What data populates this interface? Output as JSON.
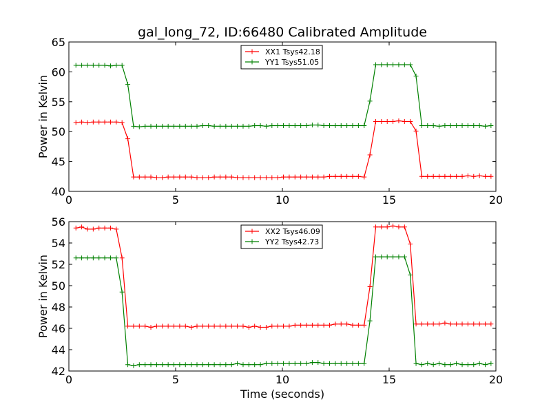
{
  "chart_data": [
    {
      "type": "line",
      "title": "gal_long_72, ID:66480 Calibrated Amplitude",
      "xlabel": "",
      "ylabel": "Power in Kelvin",
      "xlim": [
        0,
        20
      ],
      "ylim": [
        40,
        65
      ],
      "xticks": [
        0,
        5,
        10,
        15,
        20
      ],
      "yticks": [
        40,
        45,
        50,
        55,
        60,
        65
      ],
      "legend": "top-center",
      "grid": false,
      "series": [
        {
          "name": "XX1 Tsys42.18",
          "color": "#ff0000",
          "x": [
            0.33,
            0.6,
            0.87,
            1.14,
            1.41,
            1.68,
            1.95,
            2.22,
            2.49,
            2.76,
            3.03,
            3.3,
            3.57,
            3.84,
            4.11,
            4.38,
            4.65,
            4.92,
            5.19,
            5.46,
            5.73,
            6.0,
            6.27,
            6.54,
            6.81,
            7.08,
            7.35,
            7.62,
            7.89,
            8.16,
            8.43,
            8.7,
            8.97,
            9.24,
            9.51,
            9.78,
            10.05,
            10.32,
            10.59,
            10.86,
            11.13,
            11.4,
            11.67,
            11.94,
            12.21,
            12.48,
            12.75,
            13.02,
            13.29,
            13.56,
            13.83,
            14.1,
            14.37,
            14.64,
            14.91,
            15.18,
            15.45,
            15.72,
            15.99,
            16.26,
            16.53,
            16.8,
            17.07,
            17.34,
            17.61,
            17.88,
            18.15,
            18.42,
            18.69,
            18.96,
            19.23,
            19.5,
            19.77
          ],
          "y": [
            51.5,
            51.6,
            51.5,
            51.6,
            51.6,
            51.6,
            51.6,
            51.6,
            51.5,
            48.8,
            42.4,
            42.4,
            42.4,
            42.4,
            42.3,
            42.3,
            42.4,
            42.4,
            42.4,
            42.4,
            42.4,
            42.3,
            42.3,
            42.3,
            42.4,
            42.4,
            42.4,
            42.4,
            42.3,
            42.3,
            42.3,
            42.3,
            42.3,
            42.3,
            42.3,
            42.3,
            42.4,
            42.4,
            42.4,
            42.4,
            42.4,
            42.4,
            42.4,
            42.4,
            42.5,
            42.5,
            42.5,
            42.5,
            42.5,
            42.5,
            42.4,
            46.1,
            51.7,
            51.7,
            51.7,
            51.7,
            51.8,
            51.7,
            51.7,
            50.1,
            42.5,
            42.5,
            42.5,
            42.5,
            42.5,
            42.5,
            42.5,
            42.5,
            42.6,
            42.5,
            42.6,
            42.5,
            42.5
          ]
        },
        {
          "name": "YY1 Tsys51.05",
          "color": "#008000",
          "x": [
            0.33,
            0.6,
            0.87,
            1.14,
            1.41,
            1.68,
            1.95,
            2.22,
            2.49,
            2.76,
            3.03,
            3.3,
            3.57,
            3.84,
            4.11,
            4.38,
            4.65,
            4.92,
            5.19,
            5.46,
            5.73,
            6.0,
            6.27,
            6.54,
            6.81,
            7.08,
            7.35,
            7.62,
            7.89,
            8.16,
            8.43,
            8.7,
            8.97,
            9.24,
            9.51,
            9.78,
            10.05,
            10.32,
            10.59,
            10.86,
            11.13,
            11.4,
            11.67,
            11.94,
            12.21,
            12.48,
            12.75,
            13.02,
            13.29,
            13.56,
            13.83,
            14.1,
            14.37,
            14.64,
            14.91,
            15.18,
            15.45,
            15.72,
            15.99,
            16.26,
            16.53,
            16.8,
            17.07,
            17.34,
            17.61,
            17.88,
            18.15,
            18.42,
            18.69,
            18.96,
            19.23,
            19.5,
            19.77
          ],
          "y": [
            61.1,
            61.1,
            61.1,
            61.1,
            61.1,
            61.1,
            61.0,
            61.1,
            61.1,
            57.9,
            50.9,
            50.8,
            50.9,
            50.9,
            50.9,
            50.9,
            50.9,
            50.9,
            50.9,
            50.9,
            50.9,
            50.9,
            51.0,
            51.0,
            50.9,
            50.9,
            50.9,
            50.9,
            50.9,
            50.9,
            50.9,
            51.0,
            51.0,
            50.9,
            51.0,
            51.0,
            51.0,
            51.0,
            51.0,
            51.0,
            51.0,
            51.1,
            51.1,
            51.0,
            51.0,
            51.0,
            51.0,
            51.0,
            51.0,
            51.0,
            51.0,
            55.1,
            61.2,
            61.2,
            61.2,
            61.2,
            61.2,
            61.2,
            61.2,
            59.3,
            51.0,
            51.0,
            51.0,
            50.9,
            51.0,
            51.0,
            51.0,
            51.0,
            51.0,
            51.0,
            51.0,
            50.9,
            51.0
          ]
        }
      ]
    },
    {
      "type": "line",
      "title": "",
      "xlabel": "Time (seconds)",
      "ylabel": "Power in Kelvin",
      "xlim": [
        0,
        20
      ],
      "ylim": [
        42,
        56
      ],
      "xticks": [
        0,
        5,
        10,
        15,
        20
      ],
      "yticks": [
        42,
        44,
        46,
        48,
        50,
        52,
        54,
        56
      ],
      "legend": "top-center",
      "grid": false,
      "series": [
        {
          "name": "XX2 Tsys46.09",
          "color": "#ff0000",
          "x": [
            0.33,
            0.6,
            0.87,
            1.14,
            1.41,
            1.68,
            1.95,
            2.22,
            2.49,
            2.76,
            3.03,
            3.3,
            3.57,
            3.84,
            4.11,
            4.38,
            4.65,
            4.92,
            5.19,
            5.46,
            5.73,
            6.0,
            6.27,
            6.54,
            6.81,
            7.08,
            7.35,
            7.62,
            7.89,
            8.16,
            8.43,
            8.7,
            8.97,
            9.24,
            9.51,
            9.78,
            10.05,
            10.32,
            10.59,
            10.86,
            11.13,
            11.4,
            11.67,
            11.94,
            12.21,
            12.48,
            12.75,
            13.02,
            13.29,
            13.56,
            13.83,
            14.1,
            14.37,
            14.64,
            14.91,
            15.18,
            15.45,
            15.72,
            15.99,
            16.26,
            16.53,
            16.8,
            17.07,
            17.34,
            17.61,
            17.88,
            18.15,
            18.42,
            18.69,
            18.96,
            19.23,
            19.5,
            19.77
          ],
          "y": [
            55.4,
            55.5,
            55.3,
            55.3,
            55.4,
            55.4,
            55.4,
            55.3,
            52.6,
            46.2,
            46.2,
            46.2,
            46.2,
            46.1,
            46.2,
            46.2,
            46.2,
            46.2,
            46.2,
            46.2,
            46.1,
            46.2,
            46.2,
            46.2,
            46.2,
            46.2,
            46.2,
            46.2,
            46.2,
            46.2,
            46.1,
            46.2,
            46.1,
            46.1,
            46.2,
            46.2,
            46.2,
            46.2,
            46.3,
            46.3,
            46.3,
            46.3,
            46.3,
            46.3,
            46.3,
            46.4,
            46.4,
            46.4,
            46.3,
            46.3,
            46.3,
            49.9,
            55.5,
            55.5,
            55.5,
            55.6,
            55.5,
            55.5,
            53.9,
            46.4,
            46.4,
            46.4,
            46.4,
            46.4,
            46.5,
            46.4,
            46.4,
            46.4,
            46.4,
            46.4,
            46.4,
            46.4,
            46.4
          ],
          "x_note": ""
        },
        {
          "name": "YY2 Tsys42.73",
          "color": "#008000",
          "x": [
            0.33,
            0.6,
            0.87,
            1.14,
            1.41,
            1.68,
            1.95,
            2.22,
            2.49,
            2.76,
            3.03,
            3.3,
            3.57,
            3.84,
            4.11,
            4.38,
            4.65,
            4.92,
            5.19,
            5.46,
            5.73,
            6.0,
            6.27,
            6.54,
            6.81,
            7.08,
            7.35,
            7.62,
            7.89,
            8.16,
            8.43,
            8.7,
            8.97,
            9.24,
            9.51,
            9.78,
            10.05,
            10.32,
            10.59,
            10.86,
            11.13,
            11.4,
            11.67,
            11.94,
            12.21,
            12.48,
            12.75,
            13.02,
            13.29,
            13.56,
            13.83,
            14.1,
            14.37,
            14.64,
            14.91,
            15.18,
            15.45,
            15.72,
            15.99,
            16.26,
            16.53,
            16.8,
            17.07,
            17.34,
            17.61,
            17.88,
            18.15,
            18.42,
            18.69,
            18.96,
            19.23,
            19.5,
            19.77
          ],
          "y": [
            52.6,
            52.6,
            52.6,
            52.6,
            52.6,
            52.6,
            52.6,
            52.6,
            49.4,
            42.6,
            42.5,
            42.6,
            42.6,
            42.6,
            42.6,
            42.6,
            42.6,
            42.6,
            42.6,
            42.6,
            42.6,
            42.6,
            42.6,
            42.6,
            42.6,
            42.6,
            42.6,
            42.6,
            42.7,
            42.6,
            42.6,
            42.6,
            42.6,
            42.7,
            42.7,
            42.7,
            42.7,
            42.7,
            42.7,
            42.7,
            42.7,
            42.8,
            42.8,
            42.7,
            42.7,
            42.7,
            42.7,
            42.7,
            42.7,
            42.7,
            42.7,
            46.7,
            52.7,
            52.7,
            52.7,
            52.7,
            52.7,
            52.7,
            51.0,
            42.7,
            42.6,
            42.7,
            42.6,
            42.7,
            42.6,
            42.6,
            42.7,
            42.6,
            42.6,
            42.6,
            42.7,
            42.6,
            42.7
          ]
        }
      ]
    }
  ]
}
